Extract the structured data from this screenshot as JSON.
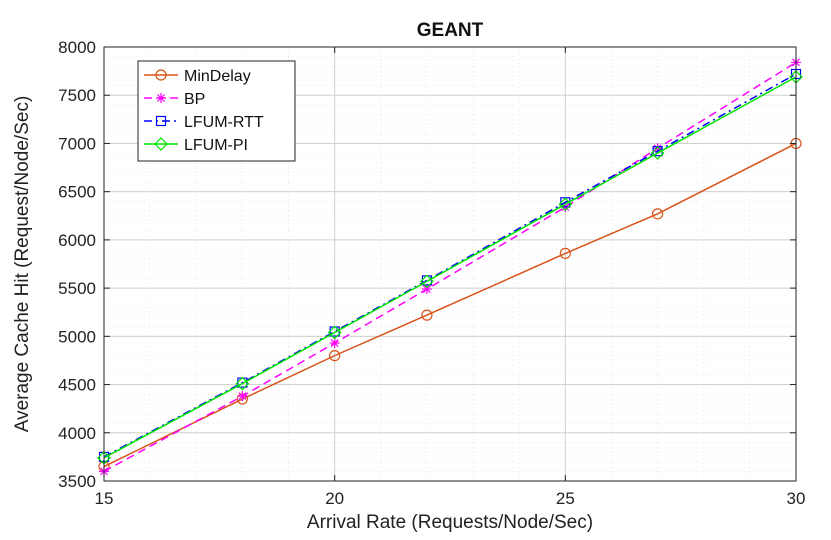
{
  "chart_data": {
    "type": "line",
    "title": "GEANT",
    "xlabel": "Arrival Rate (Requests/Node/Sec)",
    "ylabel": "Average Cache Hit (Request/Node/Sec)",
    "xlim": [
      15,
      30
    ],
    "ylim": [
      3500,
      8000
    ],
    "xticks": [
      15,
      20,
      25,
      30
    ],
    "yticks": [
      3500,
      4000,
      4500,
      5000,
      5500,
      6000,
      6500,
      7000,
      7500,
      8000
    ],
    "x": [
      15,
      18,
      20,
      22,
      25,
      27,
      30
    ],
    "grid": true,
    "minor_grid": true,
    "legend_position": "top-left",
    "series": [
      {
        "name": "MinDelay",
        "color": "#d95319",
        "marker": "circle",
        "dash": "solid",
        "values": [
          3650,
          4350,
          4800,
          5220,
          5860,
          6270,
          7000
        ]
      },
      {
        "name": "BP",
        "color": "#ff00ff",
        "marker": "asterisk",
        "dash": "dashed",
        "values": [
          3600,
          4380,
          4930,
          5490,
          6340,
          6950,
          7840
        ]
      },
      {
        "name": "LFUM-RTT",
        "color": "#0000ff",
        "marker": "square",
        "dash": "dashdot",
        "values": [
          3750,
          4520,
          5050,
          5580,
          6390,
          6920,
          7720
        ]
      },
      {
        "name": "LFUM-PI",
        "color": "#00e600",
        "marker": "diamond",
        "dash": "solid",
        "values": [
          3740,
          4510,
          5040,
          5570,
          6370,
          6900,
          7690
        ]
      }
    ]
  }
}
